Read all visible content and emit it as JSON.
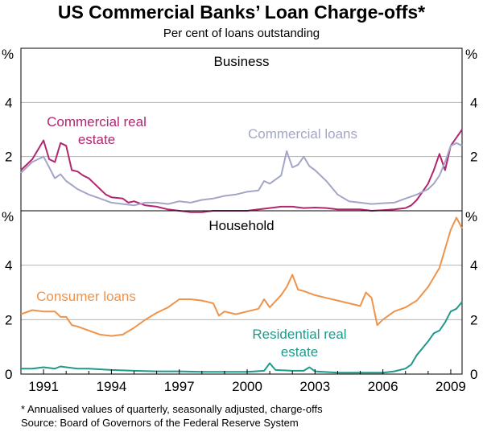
{
  "title": "US Commercial Banks’ Loan Charge-offs*",
  "subtitle": "Per cent of loans outstanding",
  "footnote": "*   Annualised values of quarterly, seasonally adjusted, charge-offs",
  "source": "Source: Board of Governors of the Federal Reserve System",
  "colors": {
    "commercial_real_estate": "#b0276f",
    "commercial_loans": "#a3a5c9",
    "consumer_loans": "#f0934a",
    "residential_real_estate": "#1f9a8a",
    "grid": "#b3b3b3"
  },
  "chart_data": [
    {
      "type": "line",
      "panel_title": "Business",
      "ylabel_left": "%",
      "ylabel_right": "%",
      "ylim": [
        0,
        6
      ],
      "yticks": [
        2,
        4
      ],
      "xlim": [
        1990.0,
        2009.5
      ],
      "series": [
        {
          "key": "commercial_real_estate",
          "name": "Commercial real estate",
          "label_lines": [
            "Commercial real",
            "estate"
          ],
          "points": [
            [
              1990.0,
              1.5
            ],
            [
              1990.5,
              1.9
            ],
            [
              1991.0,
              2.6
            ],
            [
              1991.25,
              1.9
            ],
            [
              1991.5,
              1.8
            ],
            [
              1991.75,
              2.5
            ],
            [
              1992.0,
              2.4
            ],
            [
              1992.25,
              1.5
            ],
            [
              1992.5,
              1.45
            ],
            [
              1992.75,
              1.3
            ],
            [
              1993.0,
              1.2
            ],
            [
              1993.25,
              1.0
            ],
            [
              1993.5,
              0.8
            ],
            [
              1993.75,
              0.6
            ],
            [
              1994.0,
              0.5
            ],
            [
              1994.5,
              0.45
            ],
            [
              1994.75,
              0.3
            ],
            [
              1995.0,
              0.35
            ],
            [
              1995.5,
              0.2
            ],
            [
              1996.0,
              0.15
            ],
            [
              1996.5,
              0.05
            ],
            [
              1997.0,
              0.0
            ],
            [
              1997.5,
              -0.05
            ],
            [
              1998.0,
              -0.05
            ],
            [
              1998.5,
              0.0
            ],
            [
              1999.0,
              0.0
            ],
            [
              2000.0,
              0.0
            ],
            [
              2000.5,
              0.05
            ],
            [
              2001.0,
              0.1
            ],
            [
              2001.5,
              0.15
            ],
            [
              2002.0,
              0.15
            ],
            [
              2002.5,
              0.1
            ],
            [
              2003.0,
              0.12
            ],
            [
              2003.5,
              0.1
            ],
            [
              2004.0,
              0.05
            ],
            [
              2004.5,
              0.05
            ],
            [
              2005.0,
              0.05
            ],
            [
              2005.5,
              0.0
            ],
            [
              2006.0,
              0.02
            ],
            [
              2006.5,
              0.05
            ],
            [
              2007.0,
              0.1
            ],
            [
              2007.25,
              0.2
            ],
            [
              2007.5,
              0.4
            ],
            [
              2007.75,
              0.7
            ],
            [
              2008.0,
              1.0
            ],
            [
              2008.25,
              1.5
            ],
            [
              2008.5,
              2.1
            ],
            [
              2008.75,
              1.5
            ],
            [
              2009.0,
              2.4
            ],
            [
              2009.25,
              2.7
            ],
            [
              2009.5,
              3.0
            ]
          ]
        },
        {
          "key": "commercial_loans",
          "name": "Commercial loans",
          "label_lines": [
            "Commercial loans"
          ],
          "points": [
            [
              1990.0,
              1.4
            ],
            [
              1990.5,
              1.8
            ],
            [
              1991.0,
              2.0
            ],
            [
              1991.5,
              1.2
            ],
            [
              1991.75,
              1.35
            ],
            [
              1992.0,
              1.1
            ],
            [
              1992.5,
              0.8
            ],
            [
              1993.0,
              0.6
            ],
            [
              1993.5,
              0.45
            ],
            [
              1994.0,
              0.3
            ],
            [
              1994.5,
              0.25
            ],
            [
              1995.0,
              0.2
            ],
            [
              1995.5,
              0.3
            ],
            [
              1996.0,
              0.3
            ],
            [
              1996.5,
              0.25
            ],
            [
              1997.0,
              0.35
            ],
            [
              1997.5,
              0.3
            ],
            [
              1998.0,
              0.4
            ],
            [
              1998.5,
              0.45
            ],
            [
              1999.0,
              0.55
            ],
            [
              1999.5,
              0.6
            ],
            [
              2000.0,
              0.7
            ],
            [
              2000.5,
              0.75
            ],
            [
              2000.75,
              1.1
            ],
            [
              2001.0,
              1.0
            ],
            [
              2001.5,
              1.3
            ],
            [
              2001.75,
              2.2
            ],
            [
              2002.0,
              1.6
            ],
            [
              2002.25,
              1.7
            ],
            [
              2002.5,
              2.0
            ],
            [
              2002.75,
              1.65
            ],
            [
              2003.0,
              1.5
            ],
            [
              2003.5,
              1.1
            ],
            [
              2004.0,
              0.6
            ],
            [
              2004.5,
              0.35
            ],
            [
              2005.0,
              0.3
            ],
            [
              2005.5,
              0.25
            ],
            [
              2006.0,
              0.28
            ],
            [
              2006.5,
              0.3
            ],
            [
              2007.0,
              0.45
            ],
            [
              2007.5,
              0.6
            ],
            [
              2008.0,
              0.8
            ],
            [
              2008.25,
              1.0
            ],
            [
              2008.5,
              1.3
            ],
            [
              2008.75,
              1.8
            ],
            [
              2009.0,
              2.4
            ],
            [
              2009.25,
              2.5
            ],
            [
              2009.5,
              2.4
            ]
          ]
        }
      ]
    },
    {
      "type": "line",
      "panel_title": "Household",
      "ylabel_left": "%",
      "ylabel_right": "%",
      "ylim": [
        0,
        6
      ],
      "yticks": [
        0,
        2,
        4
      ],
      "xlim": [
        1990.0,
        2009.5
      ],
      "xticks": [
        1991,
        1994,
        1997,
        2000,
        2003,
        2006,
        2009
      ],
      "series": [
        {
          "key": "consumer_loans",
          "name": "Consumer loans",
          "label_lines": [
            "Consumer loans"
          ],
          "points": [
            [
              1990.0,
              2.2
            ],
            [
              1990.5,
              2.35
            ],
            [
              1991.0,
              2.3
            ],
            [
              1991.5,
              2.3
            ],
            [
              1991.75,
              2.1
            ],
            [
              1992.0,
              2.1
            ],
            [
              1992.25,
              1.8
            ],
            [
              1992.5,
              1.75
            ],
            [
              1993.0,
              1.6
            ],
            [
              1993.5,
              1.45
            ],
            [
              1994.0,
              1.4
            ],
            [
              1994.5,
              1.45
            ],
            [
              1995.0,
              1.7
            ],
            [
              1995.5,
              2.0
            ],
            [
              1996.0,
              2.25
            ],
            [
              1996.5,
              2.45
            ],
            [
              1997.0,
              2.75
            ],
            [
              1997.5,
              2.75
            ],
            [
              1998.0,
              2.7
            ],
            [
              1998.5,
              2.6
            ],
            [
              1998.75,
              2.15
            ],
            [
              1999.0,
              2.3
            ],
            [
              1999.5,
              2.2
            ],
            [
              2000.0,
              2.3
            ],
            [
              2000.5,
              2.4
            ],
            [
              2000.75,
              2.75
            ],
            [
              2001.0,
              2.45
            ],
            [
              2001.5,
              2.9
            ],
            [
              2001.75,
              3.2
            ],
            [
              2002.0,
              3.65
            ],
            [
              2002.25,
              3.1
            ],
            [
              2002.5,
              3.05
            ],
            [
              2003.0,
              2.9
            ],
            [
              2003.5,
              2.8
            ],
            [
              2004.0,
              2.7
            ],
            [
              2004.5,
              2.6
            ],
            [
              2005.0,
              2.5
            ],
            [
              2005.25,
              3.0
            ],
            [
              2005.5,
              2.8
            ],
            [
              2005.75,
              1.8
            ],
            [
              2006.0,
              2.0
            ],
            [
              2006.5,
              2.3
            ],
            [
              2007.0,
              2.45
            ],
            [
              2007.5,
              2.7
            ],
            [
              2008.0,
              3.2
            ],
            [
              2008.5,
              3.9
            ],
            [
              2008.75,
              4.6
            ],
            [
              2009.0,
              5.3
            ],
            [
              2009.25,
              5.75
            ],
            [
              2009.5,
              5.35
            ]
          ]
        },
        {
          "key": "residential_real_estate",
          "name": "Residential real estate",
          "label_lines": [
            "Residential real",
            "estate"
          ],
          "points": [
            [
              1990.0,
              0.2
            ],
            [
              1990.5,
              0.2
            ],
            [
              1991.0,
              0.25
            ],
            [
              1991.5,
              0.2
            ],
            [
              1991.75,
              0.28
            ],
            [
              1992.0,
              0.25
            ],
            [
              1992.5,
              0.2
            ],
            [
              1993.0,
              0.2
            ],
            [
              1994.0,
              0.15
            ],
            [
              1995.0,
              0.12
            ],
            [
              1996.0,
              0.1
            ],
            [
              1997.0,
              0.1
            ],
            [
              1998.0,
              0.08
            ],
            [
              1999.0,
              0.08
            ],
            [
              2000.0,
              0.08
            ],
            [
              2000.75,
              0.12
            ],
            [
              2001.0,
              0.4
            ],
            [
              2001.25,
              0.15
            ],
            [
              2002.0,
              0.12
            ],
            [
              2002.5,
              0.12
            ],
            [
              2002.75,
              0.25
            ],
            [
              2003.0,
              0.1
            ],
            [
              2004.0,
              0.05
            ],
            [
              2005.0,
              0.05
            ],
            [
              2006.0,
              0.05
            ],
            [
              2006.5,
              0.1
            ],
            [
              2007.0,
              0.2
            ],
            [
              2007.25,
              0.35
            ],
            [
              2007.5,
              0.7
            ],
            [
              2008.0,
              1.2
            ],
            [
              2008.25,
              1.5
            ],
            [
              2008.5,
              1.6
            ],
            [
              2008.75,
              1.9
            ],
            [
              2009.0,
              2.3
            ],
            [
              2009.25,
              2.4
            ],
            [
              2009.5,
              2.65
            ]
          ]
        }
      ]
    }
  ]
}
